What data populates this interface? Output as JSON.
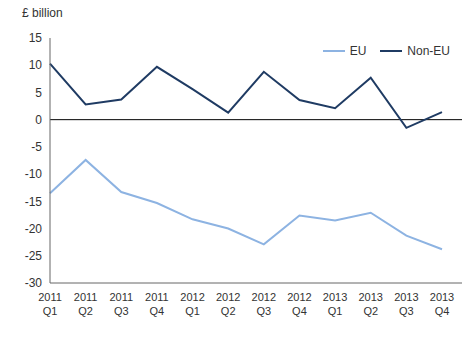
{
  "chart_data": {
    "type": "line",
    "y_label": "£ billion",
    "categories": [
      "2011 Q1",
      "2011 Q2",
      "2011 Q3",
      "2011 Q4",
      "2012 Q1",
      "2012 Q2",
      "2012 Q3",
      "2012 Q4",
      "2013 Q1",
      "2013 Q2",
      "2013 Q3",
      "2013 Q4"
    ],
    "series": [
      {
        "name": "EU",
        "color": "#8db3e2",
        "values": [
          -13.5,
          -7.4,
          -13.3,
          -15.3,
          -18.3,
          -20.0,
          -22.9,
          -17.6,
          -18.5,
          -17.1,
          -21.3,
          -23.8
        ]
      },
      {
        "name": "Non-EU",
        "color": "#1f3b63",
        "values": [
          10.3,
          2.8,
          3.7,
          9.7,
          5.6,
          1.3,
          8.8,
          3.6,
          2.1,
          7.7,
          -1.5,
          1.4
        ]
      }
    ],
    "ylim": [
      -30,
      15
    ],
    "yticks": [
      -30,
      -25,
      -20,
      -15,
      -10,
      -5,
      0,
      5,
      10,
      15
    ],
    "grid": false,
    "legend": "upper right"
  }
}
